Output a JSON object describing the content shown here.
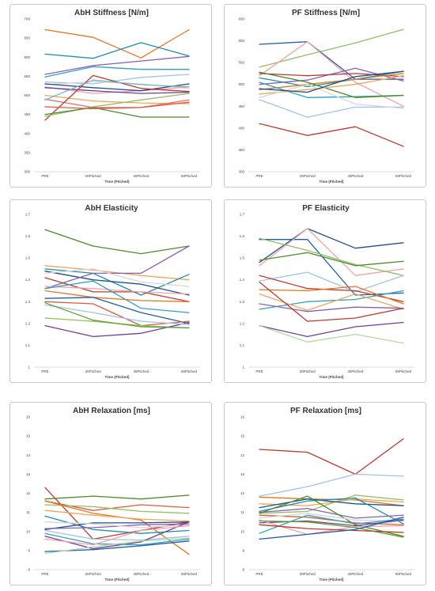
{
  "chart_data": [
    {
      "type": "line",
      "title": "AbH Stiffness [N/m]",
      "xlabel": "Time (Pitched)",
      "ylabel": "",
      "categories": [
        "PRE",
        "20Pitched",
        "40Pitched",
        "60Pitched"
      ],
      "ylim": [
        300,
        700
      ],
      "yticks": [
        300,
        350,
        400,
        450,
        500,
        550,
        600,
        650,
        700
      ],
      "grid": false,
      "series": [
        {
          "color": "#e8761e",
          "values": [
            672,
            652,
            598,
            672
          ]
        },
        {
          "color": "#1a8fb0",
          "values": [
            608,
            597,
            638,
            603
          ]
        },
        {
          "color": "#8a5fb8",
          "values": [
            555,
            578,
            590,
            602
          ]
        },
        {
          "color": "#2ea3c0",
          "values": [
            548,
            575,
            568,
            568
          ]
        },
        {
          "color": "#9fc3ea",
          "values": [
            535,
            530,
            547,
            555
          ]
        },
        {
          "color": "#d6d6d6",
          "values": [
            528,
            536,
            530,
            518
          ]
        },
        {
          "color": "#f1a3a8",
          "values": [
            522,
            505,
            512,
            522
          ]
        },
        {
          "color": "#1f4f8a",
          "values": [
            530,
            520,
            512,
            530
          ]
        },
        {
          "color": "#6f3d9c",
          "values": [
            520,
            512,
            505,
            508
          ]
        },
        {
          "color": "#f2a65a",
          "values": [
            500,
            485,
            480,
            478
          ]
        },
        {
          "color": "#f06a6a",
          "values": [
            490,
            468,
            468,
            488
          ]
        },
        {
          "color": "#c0392b",
          "values": [
            435,
            552,
            518,
            510
          ]
        },
        {
          "color": "#8fc062",
          "values": [
            445,
            470,
            488,
            505
          ]
        },
        {
          "color": "#4a8c2a",
          "values": [
            450,
            468,
            443,
            443
          ]
        },
        {
          "color": "#e05a3a",
          "values": [
            470,
            465,
            468,
            482
          ]
        },
        {
          "color": "#6fb6c9",
          "values": [
            488,
            540,
            528,
            522
          ]
        }
      ]
    },
    {
      "type": "line",
      "title": "PF Stiffness [N/m]",
      "xlabel": "Time (Pitched)",
      "ylabel": "",
      "categories": [
        "PRE",
        "20Pitched",
        "40Pitched",
        "60Pitched"
      ],
      "ylim": [
        300,
        650
      ],
      "yticks": [
        300,
        350,
        400,
        450,
        500,
        550,
        600,
        650
      ],
      "grid": false,
      "series": [
        {
          "color": "#8fc062",
          "values": [
            540,
            568,
            595,
            626
          ]
        },
        {
          "color": "#1f5fa8",
          "values": [
            592,
            598,
            512,
            512
          ]
        },
        {
          "color": "#f1a3a8",
          "values": [
            520,
            598,
            505,
            450
          ]
        },
        {
          "color": "#1a8fb0",
          "values": [
            515,
            495,
            512,
            530
          ]
        },
        {
          "color": "#8a5fb8",
          "values": [
            500,
            510,
            537,
            508
          ]
        },
        {
          "color": "#c0392b",
          "values": [
            525,
            520,
            525,
            518
          ]
        },
        {
          "color": "#e8761e",
          "values": [
            488,
            500,
            512,
            525
          ]
        },
        {
          "color": "#2ea3c0",
          "values": [
            505,
            470,
            472,
            475
          ]
        },
        {
          "color": "#4a8c2a",
          "values": [
            528,
            505,
            470,
            475
          ]
        },
        {
          "color": "#f2a65a",
          "values": [
            478,
            488,
            500,
            520
          ]
        },
        {
          "color": "#9fc3ea",
          "values": [
            465,
            425,
            448,
            448
          ]
        },
        {
          "color": "#d6d6d6",
          "values": [
            470,
            500,
            455,
            445
          ]
        },
        {
          "color": "#1f4f8a",
          "values": [
            490,
            482,
            518,
            530
          ]
        },
        {
          "color": "#c03a2b",
          "values": [
            410,
            383,
            403,
            358
          ]
        }
      ]
    },
    {
      "type": "line",
      "title": "AbH Elasticity",
      "xlabel": "Time (Pitched)",
      "ylabel": "",
      "categories": [
        "PRE",
        "20Pitched",
        "40Pitched",
        "60Pitched"
      ],
      "ylim": [
        1,
        1.7
      ],
      "yticks": [
        1,
        1.1,
        1.2,
        1.3,
        1.4,
        1.5,
        1.6,
        1.7
      ],
      "grid": false,
      "series": [
        {
          "color": "#4a8c2a",
          "values": [
            1.63,
            1.555,
            1.52,
            1.555
          ]
        },
        {
          "color": "#f2a65a",
          "values": [
            1.465,
            1.445,
            1.42,
            1.4
          ]
        },
        {
          "color": "#1a8fb0",
          "values": [
            1.45,
            1.43,
            1.33,
            1.425
          ]
        },
        {
          "color": "#1f4f8a",
          "values": [
            1.44,
            1.4,
            1.38,
            1.33
          ]
        },
        {
          "color": "#8a5fb8",
          "values": [
            1.36,
            1.43,
            1.43,
            1.555
          ]
        },
        {
          "color": "#c0392b",
          "values": [
            1.41,
            1.345,
            1.345,
            1.3
          ]
        },
        {
          "color": "#f1a3a8",
          "values": [
            1.37,
            1.36,
            1.345,
            1.335
          ]
        },
        {
          "color": "#2ea3c0",
          "values": [
            1.36,
            1.395,
            1.27,
            1.25
          ]
        },
        {
          "color": "#e8761e",
          "values": [
            1.35,
            1.32,
            1.305,
            1.3
          ]
        },
        {
          "color": "#1f5fa8",
          "values": [
            1.315,
            1.32,
            1.25,
            1.2
          ]
        },
        {
          "color": "#d6d6d6",
          "values": [
            1.43,
            1.45,
            1.39,
            1.37
          ]
        },
        {
          "color": "#e05a3a",
          "values": [
            1.3,
            1.29,
            1.19,
            1.21
          ]
        },
        {
          "color": "#8fc062",
          "values": [
            1.225,
            1.21,
            1.19,
            1.18
          ]
        },
        {
          "color": "#6f3d9c",
          "values": [
            1.19,
            1.14,
            1.155,
            1.205
          ]
        },
        {
          "color": "#9fc3ea",
          "values": [
            1.285,
            1.25,
            1.21,
            1.195
          ]
        },
        {
          "color": "#5aa02c",
          "values": [
            1.295,
            1.215,
            1.185,
            1.18
          ]
        }
      ]
    },
    {
      "type": "line",
      "title": "PF Elasticity",
      "xlabel": "Time (Pitched)",
      "ylabel": "",
      "categories": [
        "PRE",
        "20Pitched",
        "40Pitched",
        "60Pitched"
      ],
      "ylim": [
        1,
        1.7
      ],
      "yticks": [
        1,
        1.1,
        1.2,
        1.3,
        1.4,
        1.5,
        1.6,
        1.7
      ],
      "grid": false,
      "series": [
        {
          "color": "#1f5fa8",
          "values": [
            1.585,
            1.585,
            1.33,
            1.34
          ]
        },
        {
          "color": "#1f4f8a",
          "values": [
            1.48,
            1.635,
            1.545,
            1.57
          ]
        },
        {
          "color": "#f1a3a8",
          "values": [
            1.465,
            1.635,
            1.42,
            1.45
          ]
        },
        {
          "color": "#8fc062",
          "values": [
            1.59,
            1.535,
            1.47,
            1.42
          ]
        },
        {
          "color": "#4a8c2a",
          "values": [
            1.49,
            1.525,
            1.465,
            1.485
          ]
        },
        {
          "color": "#9fc3ea",
          "values": [
            1.395,
            1.435,
            1.345,
            1.42
          ]
        },
        {
          "color": "#c0392b",
          "values": [
            1.42,
            1.36,
            1.35,
            1.3
          ]
        },
        {
          "color": "#e8761e",
          "values": [
            1.355,
            1.35,
            1.37,
            1.29
          ]
        },
        {
          "color": "#2ea3c0",
          "values": [
            1.265,
            1.3,
            1.31,
            1.35
          ]
        },
        {
          "color": "#f2a65a",
          "values": [
            1.335,
            1.26,
            1.335,
            1.265
          ]
        },
        {
          "color": "#8a5fb8",
          "values": [
            1.29,
            1.255,
            1.275,
            1.27
          ]
        },
        {
          "color": "#c03a2b",
          "values": [
            1.39,
            1.21,
            1.225,
            1.27
          ]
        },
        {
          "color": "#6f3d9c",
          "values": [
            1.19,
            1.14,
            1.185,
            1.205
          ]
        },
        {
          "color": "#b5d99c",
          "values": [
            1.19,
            1.115,
            1.15,
            1.11
          ]
        }
      ]
    },
    {
      "type": "line",
      "title": "AbH Relaxation [ms]",
      "xlabel": "Time (Pitched)",
      "ylabel": "",
      "categories": [
        "PRE",
        "20Pitched",
        "40Pitched",
        "60Pitched"
      ],
      "ylim": [
        8,
        16
      ],
      "yticks": [
        8,
        9,
        10,
        11,
        12,
        13,
        14,
        15,
        16
      ],
      "grid": false,
      "series": [
        {
          "color": "#c0392b",
          "values": [
            12.3,
            9.6,
            10.05,
            10.5
          ]
        },
        {
          "color": "#4a8c2a",
          "values": [
            11.7,
            11.85,
            11.7,
            11.9
          ]
        },
        {
          "color": "#e05a3a",
          "values": [
            11.6,
            11.1,
            11.4,
            11.25
          ]
        },
        {
          "color": "#8fc062",
          "values": [
            11.4,
            11.3,
            11.05,
            10.95
          ]
        },
        {
          "color": "#e8761e",
          "values": [
            11.6,
            10.95,
            10.6,
            8.8
          ]
        },
        {
          "color": "#f2a65a",
          "values": [
            11.1,
            10.85,
            10.65,
            10.55
          ]
        },
        {
          "color": "#1a8fb0",
          "values": [
            10.8,
            10.1,
            9.9,
            10.05
          ]
        },
        {
          "color": "#1f4f8a",
          "values": [
            10.1,
            10.45,
            10.45,
            10.5
          ]
        },
        {
          "color": "#8a5fb8",
          "values": [
            10.15,
            10.2,
            10.35,
            10.4
          ]
        },
        {
          "color": "#d6d6d6",
          "values": [
            10.5,
            10.4,
            10.2,
            10.35
          ]
        },
        {
          "color": "#9fc3ea",
          "values": [
            10.05,
            9.6,
            9.55,
            9.75
          ]
        },
        {
          "color": "#6f3d9c",
          "values": [
            9.75,
            9.1,
            9.45,
            10.5
          ]
        },
        {
          "color": "#2ea3c0",
          "values": [
            9.9,
            9.35,
            9.3,
            9.6
          ]
        },
        {
          "color": "#f1a3a8",
          "values": [
            9.6,
            9.3,
            10.05,
            10.3
          ]
        },
        {
          "color": "#1f5fa8",
          "values": [
            8.95,
            9.05,
            9.25,
            9.5
          ]
        },
        {
          "color": "#b5d99c",
          "values": [
            8.85,
            9.2,
            9.5,
            9.65
          ]
        }
      ]
    },
    {
      "type": "line",
      "title": "PF Relaxation [ms]",
      "xlabel": "Time (Pitched)",
      "ylabel": "",
      "categories": [
        "PRE",
        "20Pitched",
        "40Pitched",
        "60Pitched"
      ],
      "ylim": [
        8,
        16
      ],
      "yticks": [
        8,
        9,
        10,
        11,
        12,
        13,
        14,
        15,
        16
      ],
      "grid": false,
      "series": [
        {
          "color": "#c0392b",
          "values": [
            14.3,
            14.15,
            13.0,
            14.85
          ]
        },
        {
          "color": "#9fc3ea",
          "values": [
            11.85,
            12.35,
            13.0,
            12.9
          ]
        },
        {
          "color": "#e8761e",
          "values": [
            11.8,
            11.7,
            11.65,
            11.35
          ]
        },
        {
          "color": "#8fc062",
          "values": [
            10.95,
            11.05,
            11.9,
            11.65
          ]
        },
        {
          "color": "#f2a65a",
          "values": [
            11.45,
            11.35,
            11.7,
            11.55
          ]
        },
        {
          "color": "#1f4f8a",
          "values": [
            11.25,
            11.7,
            11.45,
            11.35
          ]
        },
        {
          "color": "#1a8fb0",
          "values": [
            11.05,
            11.6,
            11.75,
            10.4
          ]
        },
        {
          "color": "#8a5fb8",
          "values": [
            11.0,
            11.2,
            10.7,
            10.85
          ]
        },
        {
          "color": "#4a8c2a",
          "values": [
            10.95,
            11.85,
            10.35,
            9.75
          ]
        },
        {
          "color": "#e05a3a",
          "values": [
            10.85,
            10.75,
            10.45,
            10.35
          ]
        },
        {
          "color": "#d6d6d6",
          "values": [
            10.7,
            10.95,
            10.6,
            10.55
          ]
        },
        {
          "color": "#6f3d9c",
          "values": [
            10.45,
            10.55,
            10.3,
            10.6
          ]
        },
        {
          "color": "#f1a3a8",
          "values": [
            10.6,
            9.85,
            10.25,
            10.3
          ]
        },
        {
          "color": "#2ea3c0",
          "values": [
            9.9,
            10.85,
            10.4,
            10.65
          ]
        },
        {
          "color": "#5aa02c",
          "values": [
            10.55,
            10.5,
            10.2,
            9.7
          ]
        },
        {
          "color": "#c03a2b",
          "values": [
            10.35,
            10.15,
            10.05,
            9.95
          ]
        },
        {
          "color": "#1f5fa8",
          "values": [
            9.6,
            9.85,
            10.1,
            10.75
          ]
        }
      ]
    }
  ]
}
